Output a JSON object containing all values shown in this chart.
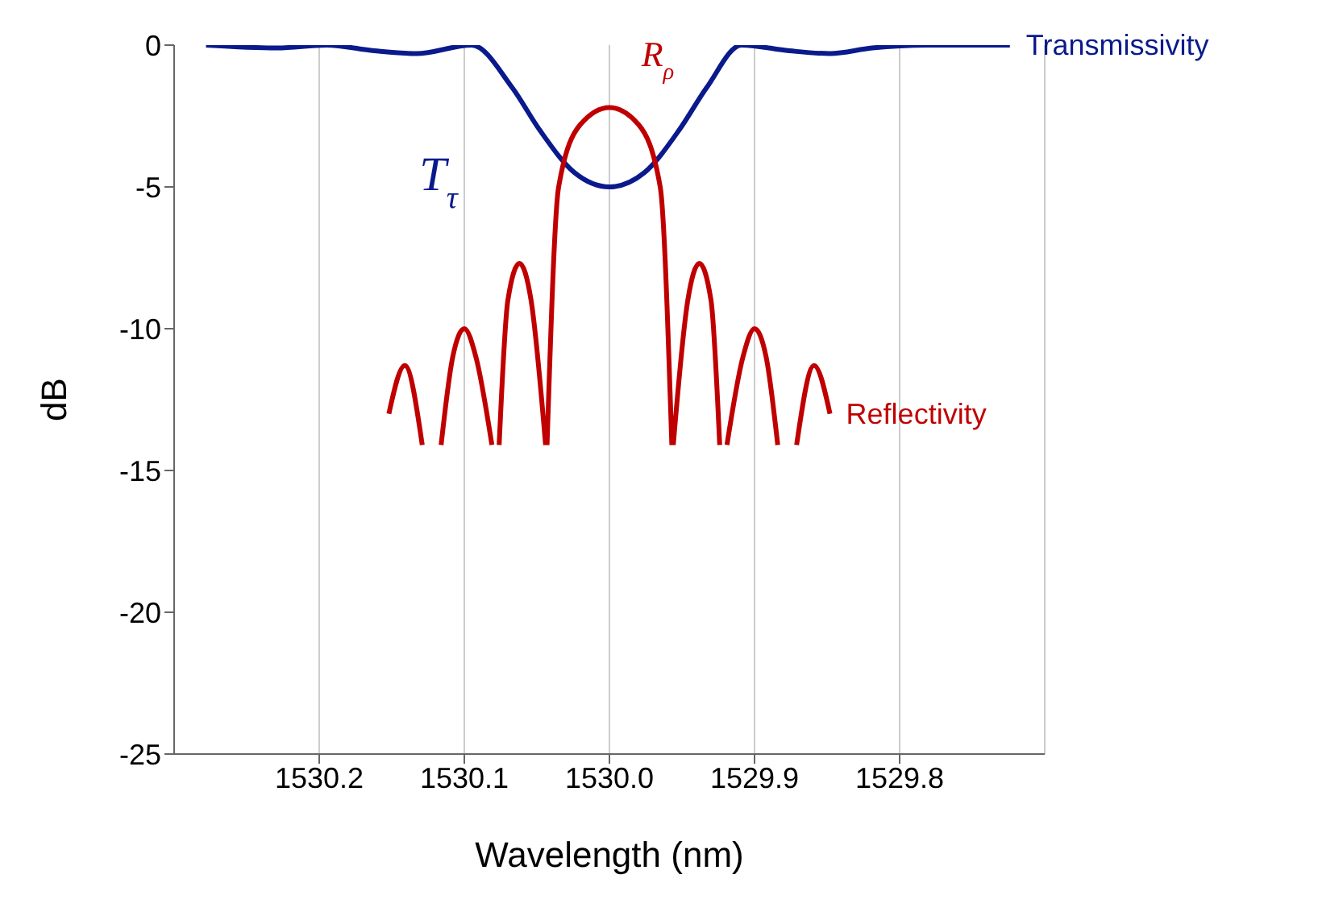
{
  "chart_data": {
    "type": "line",
    "xlabel": "Wavelength (nm)",
    "ylabel": "dB",
    "xlim": [
      1530.3,
      1529.7
    ],
    "xticks": [
      1530.2,
      1530.1,
      {
        "value": 1530.0,
        "label": "1530.0"
      },
      1529.9,
      1529.8
    ],
    "ylim": [
      -25,
      0
    ],
    "yticks": [
      0,
      -5,
      -10,
      -15,
      -20,
      -25
    ],
    "grid": "x",
    "marker": "none",
    "line_style": "solid",
    "annotations": [
      "T$_{τ}$",
      "R$_{ρ}$"
    ],
    "series": [
      {
        "name": "Transmissivity",
        "color": "#0a1a8c",
        "x": [
          1530.278,
          1530.229,
          1530.195,
          1530.162,
          1530.133,
          1530.095,
          1530.067,
          1530.048,
          1530.024,
          1530.0,
          1529.976,
          1529.952,
          1529.933,
          1529.909,
          1529.876,
          1529.848,
          1529.819,
          1529.781,
          1529.724
        ],
        "values": [
          0,
          -0.1,
          0,
          -0.2,
          -0.3,
          0,
          -1.5,
          -3,
          -4.5,
          -5,
          -4.5,
          -3,
          -1.5,
          0,
          -0.2,
          -0.3,
          -0.1,
          0,
          0
        ]
      },
      {
        "name": "Reflectivity",
        "color": "#c00000",
        "x": [
          1530.152,
          1530.141,
          1530.129,
          1530.122,
          1530.116,
          1530.108,
          1530.1,
          1530.092,
          1530.081,
          1530.078,
          1530.076,
          1530.07,
          1530.062,
          1530.054,
          1530.044,
          1530.0435,
          1530.043,
          1530.035,
          1530.02,
          1530.0,
          1529.98,
          1529.965,
          1529.957,
          1529.9565,
          1529.956,
          1529.946,
          1529.938,
          1529.93,
          1529.924,
          1529.922,
          1529.919,
          1529.908,
          1529.9,
          1529.892,
          1529.884,
          1529.878,
          1529.871,
          1529.859,
          1529.848
        ],
        "values": [
          -13,
          -11.3,
          -14.1,
          null,
          -14.1,
          -11,
          -10,
          -11,
          -14.1,
          null,
          -14.1,
          -9,
          -7.7,
          -9,
          -14.1,
          null,
          -14.1,
          -5,
          -2.8,
          -2.2,
          -2.8,
          -5,
          -14.1,
          null,
          -14.1,
          -9,
          -7.7,
          -9,
          -14.1,
          null,
          -14.1,
          -11,
          -10,
          -11,
          -14.1,
          null,
          -14.1,
          -11.3,
          -13
        ]
      }
    ]
  }
}
